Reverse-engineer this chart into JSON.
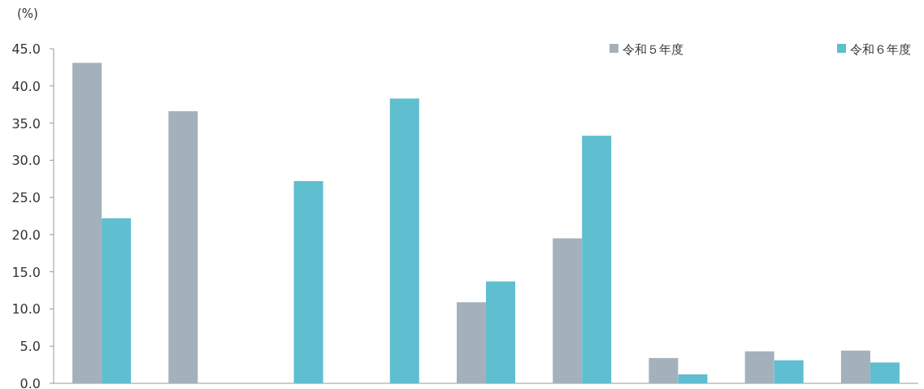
{
  "chart_data": {
    "type": "bar",
    "ylabel": "(%)",
    "categories": [
      null,
      null,
      null,
      null,
      null,
      null,
      null,
      null,
      null
    ],
    "series": [
      {
        "name": "令和５年度",
        "color": "#a3b1bc",
        "values": [
          43.1,
          36.6,
          null,
          null,
          10.9,
          19.5,
          3.4,
          4.3,
          4.4
        ]
      },
      {
        "name": "令和６年度",
        "color": "#5fbecf",
        "values": [
          22.2,
          null,
          27.2,
          38.3,
          13.7,
          33.3,
          1.2,
          3.1,
          2.8
        ]
      }
    ],
    "ylim": [
      0,
      45
    ],
    "yticks": [
      {
        "value": 0,
        "label": "0.0"
      },
      {
        "value": 5,
        "label": "5.0"
      },
      {
        "value": 10,
        "label": "10.0"
      },
      {
        "value": 15,
        "label": "15.0"
      },
      {
        "value": 20,
        "label": "20.0"
      },
      {
        "value": 25,
        "label": "25.0"
      },
      {
        "value": 30,
        "label": "30.0"
      },
      {
        "value": 35,
        "label": "35.0"
      },
      {
        "value": 40,
        "label": "40.0"
      },
      {
        "value": 45,
        "label": "45.0"
      }
    ],
    "tick_labels": "y",
    "legend": "top right"
  }
}
